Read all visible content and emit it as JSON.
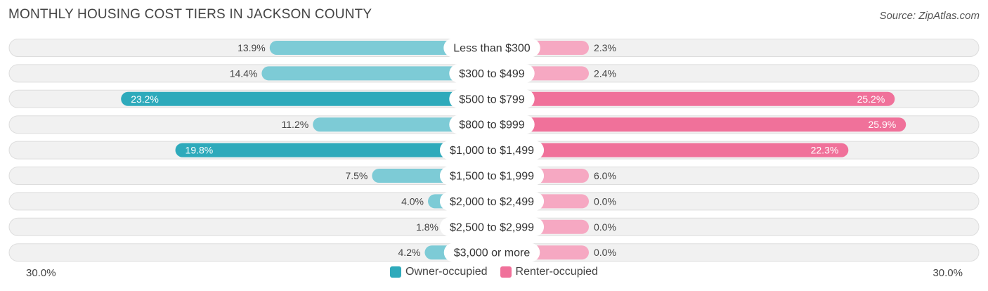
{
  "header": {
    "title": "MONTHLY HOUSING COST TIERS IN JACKSON COUNTY",
    "source": "Source: ZipAtlas.com"
  },
  "colors": {
    "owner_strong": "#2eaabb",
    "owner_light": "#7dcbd6",
    "renter_strong": "#f0719a",
    "renter_light": "#f6a8c2",
    "row_bg": "#f1f1f1",
    "row_border": "#dddddd"
  },
  "axis": {
    "left_label": "30.0%",
    "right_label": "30.0%"
  },
  "legend": {
    "owner_label": "Owner-occupied",
    "renter_label": "Renter-occupied"
  },
  "chart_data": {
    "type": "bar",
    "orientation": "diverging-horizontal",
    "title": "MONTHLY HOUSING COST TIERS IN JACKSON COUNTY",
    "xlim": [
      -30,
      30
    ],
    "categories": [
      "Less than $300",
      "$300 to $499",
      "$500 to $799",
      "$800 to $999",
      "$1,000 to $1,499",
      "$1,500 to $1,999",
      "$2,000 to $2,499",
      "$2,500 to $2,999",
      "$3,000 or more"
    ],
    "series": [
      {
        "name": "Owner-occupied",
        "values": [
          13.9,
          14.4,
          23.2,
          11.2,
          19.8,
          7.5,
          4.0,
          1.8,
          4.2
        ],
        "labels": [
          "13.9%",
          "14.4%",
          "23.2%",
          "11.2%",
          "19.8%",
          "7.5%",
          "4.0%",
          "1.8%",
          "4.2%"
        ]
      },
      {
        "name": "Renter-occupied",
        "values": [
          2.3,
          2.4,
          25.2,
          25.9,
          22.3,
          6.0,
          0.0,
          0.0,
          0.0
        ],
        "labels": [
          "2.3%",
          "2.4%",
          "25.2%",
          "25.9%",
          "22.3%",
          "6.0%",
          "0.0%",
          "0.0%",
          "0.0%"
        ]
      }
    ],
    "legend_position": "bottom-center"
  }
}
